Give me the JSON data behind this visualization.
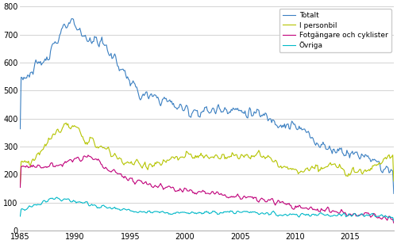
{
  "title": "",
  "xlabel": "",
  "ylabel": "",
  "xlim": [
    1985.0,
    2019.0
  ],
  "ylim": [
    0,
    800
  ],
  "yticks": [
    0,
    100,
    200,
    300,
    400,
    500,
    600,
    700,
    800
  ],
  "xticks": [
    1985,
    1990,
    1995,
    2000,
    2005,
    2010,
    2015
  ],
  "colors": {
    "Totalt": "#3a7fc1",
    "I personbil": "#b5c400",
    "Fotgangare": "#c0007a",
    "Ovriga": "#00b8c8"
  },
  "legend_labels": [
    "Totalt",
    "I personbil",
    "Fotgängare och cyklister",
    "Övriga"
  ],
  "background_color": "#ffffff",
  "grid_color": "#cccccc",
  "linewidth": 0.8
}
